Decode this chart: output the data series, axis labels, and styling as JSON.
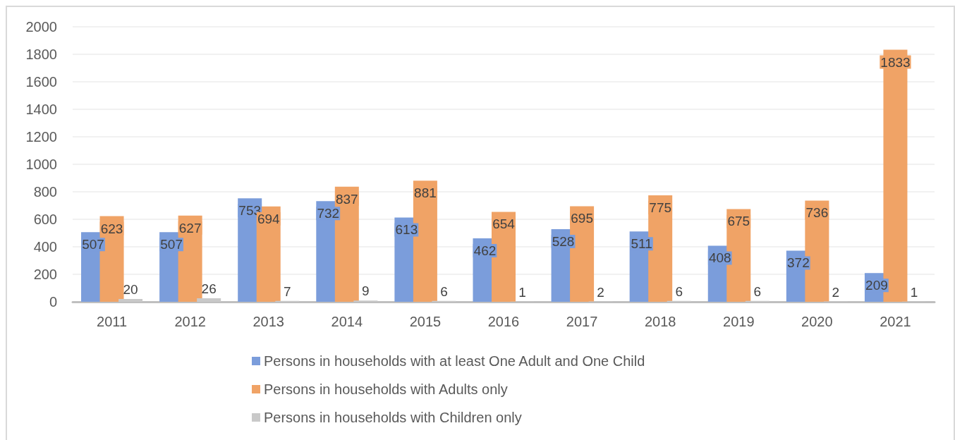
{
  "chart_data": {
    "type": "bar",
    "categories": [
      "2011",
      "2012",
      "2013",
      "2014",
      "2015",
      "2016",
      "2017",
      "2018",
      "2019",
      "2020",
      "2021"
    ],
    "series": [
      {
        "name": "Persons in households with at least One Adult and One Child",
        "color": "#7b9ddb",
        "values": [
          507,
          507,
          753,
          732,
          613,
          462,
          528,
          511,
          408,
          372,
          209
        ]
      },
      {
        "name": "Persons in households with Adults only",
        "color": "#f0a366",
        "values": [
          623,
          627,
          694,
          837,
          881,
          654,
          695,
          775,
          675,
          736,
          1833
        ]
      },
      {
        "name": "Persons in households with Children only",
        "color": "#c9c9c9",
        "values": [
          20,
          26,
          7,
          9,
          6,
          1,
          2,
          6,
          6,
          2,
          1
        ]
      }
    ],
    "ylim": [
      0,
      2000
    ],
    "yticks": [
      0,
      200,
      400,
      600,
      800,
      1000,
      1200,
      1400,
      1600,
      1800,
      2000
    ],
    "grid": "y",
    "legend": "bottom",
    "data_labels": true
  }
}
